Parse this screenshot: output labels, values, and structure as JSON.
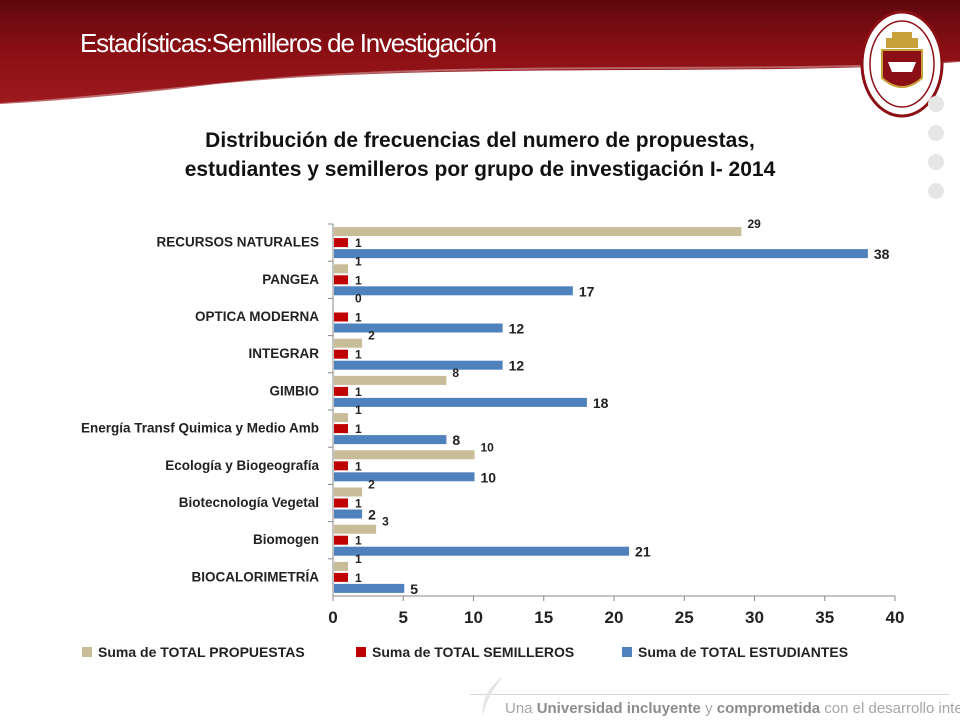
{
  "header": {
    "title": "Estadísticas:Semilleros de Investigación",
    "colors": {
      "band": "#8b0f14",
      "band_dark": "#6d0a0e"
    }
  },
  "subtitle": {
    "line1": "Distribución de frecuencias del numero de propuestas,",
    "line2": "estudiantes y semilleros por grupo de investigación  I- 2014"
  },
  "footer": {
    "part1": "Una ",
    "part2": "Universidad incluyente",
    "part3": " y ",
    "part4": "comprometida",
    "part5": " con el desarrollo integral"
  },
  "chart_data": {
    "type": "bar",
    "orientation": "horizontal",
    "categories": [
      "RECURSOS NATURALES",
      "PANGEA",
      "OPTICA MODERNA",
      "INTEGRAR",
      "GIMBIO",
      "Energía Transf Quimica y Medio Amb",
      "Ecología y Biogeografía",
      "Biotecnología Vegetal",
      "Biomogen",
      "BIOCALORIMETRÍA"
    ],
    "series": [
      {
        "name": "Suma de TOTAL PROPUESTAS",
        "color": "#c9bc98",
        "values": [
          29,
          1,
          0,
          2,
          8,
          1,
          10,
          2,
          3,
          1
        ]
      },
      {
        "name": "Suma de TOTAL SEMILLEROS",
        "color": "#c00000",
        "values": [
          1,
          1,
          1,
          1,
          1,
          1,
          1,
          1,
          1,
          1
        ]
      },
      {
        "name": "Suma de TOTAL ESTUDIANTES",
        "color": "#4f81bd",
        "values": [
          38,
          17,
          12,
          12,
          18,
          8,
          10,
          2,
          21,
          5
        ]
      }
    ],
    "xlim": [
      0,
      40
    ],
    "xticks": [
      0,
      5,
      10,
      15,
      20,
      25,
      30,
      35,
      40
    ],
    "legend_position": "bottom",
    "grid": false
  }
}
